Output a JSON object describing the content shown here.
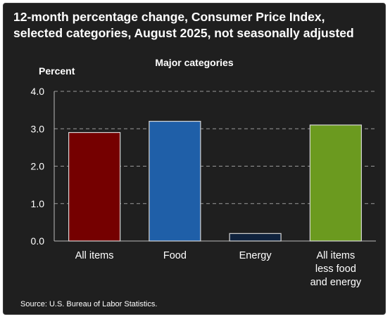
{
  "title_line1": "12-month percentage change, Consumer Price Index,",
  "title_line2": "selected categories, August 2025, not seasonally adjusted",
  "source": "Source: U.S. Bureau of Labor Statistics.",
  "chart_data": {
    "type": "bar",
    "title": "12-month percentage change, Consumer Price Index, selected categories, August 2025, not seasonally adjusted",
    "subtitle": "Major categories",
    "ylabel": "Percent",
    "xlabel": "",
    "ylim": [
      0,
      4
    ],
    "yticks": [
      "0.0",
      "1.0",
      "2.0",
      "3.0",
      "4.0"
    ],
    "grid": true,
    "categories": [
      [
        "All items"
      ],
      [
        "Food"
      ],
      [
        "Energy"
      ],
      [
        "All items",
        "less food",
        "and energy"
      ]
    ],
    "values": [
      2.9,
      3.2,
      0.2,
      3.1
    ],
    "colors": [
      "#750000",
      "#1f5fa8",
      "#0f223d",
      "#6b9a1f"
    ]
  }
}
